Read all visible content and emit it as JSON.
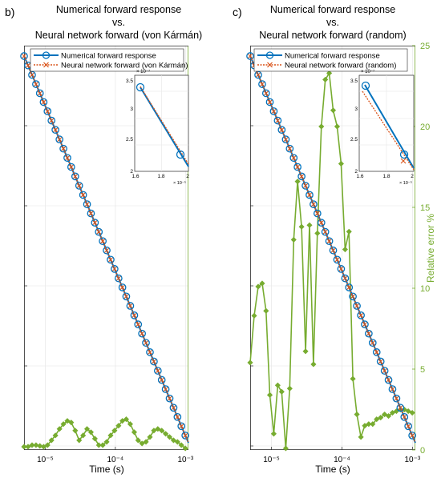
{
  "panels": [
    {
      "letter": "b)",
      "title_line1": "Numerical forward response",
      "title_line2": "vs.",
      "title_line3": "Neural network forward (von Kármán)",
      "legend": [
        "Numerical forward response",
        "Neural network forward (von Kármán)"
      ],
      "xlabel": "Time (s)",
      "inset": {
        "y_exponent": "× 10⁻⁷",
        "x_exponent": "× 10⁻⁵",
        "y_ticks": [
          "3.5",
          "3",
          "2.5",
          "2"
        ],
        "x_ticks": [
          "1.6",
          "1.8",
          "2"
        ]
      }
    },
    {
      "letter": "c)",
      "title_line1": "Numerical forward response",
      "title_line2": "vs.",
      "title_line3": "Neural network forward (random)",
      "legend": [
        "Numerical forward response",
        "Neural network forward (random)"
      ],
      "xlabel": "Time (s)",
      "ylabel_right": "Relative error %",
      "inset": {
        "y_exponent": "× 10⁻⁷",
        "x_exponent": "× 10⁻⁵",
        "y_ticks": [
          "3.5",
          "3",
          "2.5",
          "2"
        ],
        "x_ticks": [
          "1.6",
          "1.8",
          "2"
        ]
      }
    }
  ],
  "chart_data": [
    {
      "type": "line",
      "title": "Numerical forward response vs. Neural network forward (von Kármán)",
      "xlabel": "Time (s)",
      "x_scale": "log",
      "xlim": [
        5e-06,
        0.0011
      ],
      "x_tick_labels": [
        "10⁻⁵",
        "10⁻⁴",
        "10⁻³"
      ],
      "y_scale": "log",
      "legend_position": "top",
      "colors": {
        "numerical": "#0072BD",
        "network": "#D95319",
        "error": "#77AC30"
      },
      "series": [
        {
          "name": "Numerical forward response",
          "marker": "circle",
          "x": [
            5e-06,
            0.0011
          ]
        },
        {
          "name": "Neural network forward (von Kármán)",
          "marker": "x",
          "x": [
            5e-06,
            0.0011
          ]
        }
      ],
      "error_series": {
        "axis": "right",
        "ylim": [
          0,
          25
        ],
        "x": [
          5e-06,
          5.7e-06,
          6.5e-06,
          7.4e-06,
          8.4e-06,
          9.5e-06,
          1.08e-05,
          1.23e-05,
          1.4e-05,
          1.6e-05,
          1.82e-05,
          2.07e-05,
          2.35e-05,
          2.68e-05,
          3.05e-05,
          3.47e-05,
          3.95e-05,
          4.49e-05,
          5.11e-05,
          5.81e-05,
          6.61e-05,
          7.52e-05,
          8.56e-05,
          9.74e-05,
          0.000111,
          0.000126,
          0.000143,
          0.000163,
          0.000186,
          0.000211,
          0.00024,
          0.000273,
          0.000311,
          0.000354,
          0.000403,
          0.000458,
          0.000521,
          0.000593,
          0.000675,
          0.000768,
          0.000873,
          0.000994
        ],
        "values": [
          0.2,
          0.2,
          0.3,
          0.3,
          0.25,
          0.2,
          0.3,
          0.6,
          0.9,
          1.3,
          1.6,
          1.8,
          1.7,
          1.2,
          0.6,
          0.9,
          1.3,
          1.1,
          0.7,
          0.3,
          0.3,
          0.5,
          0.9,
          1.2,
          1.5,
          1.8,
          1.9,
          1.6,
          1.1,
          0.6,
          0.4,
          0.5,
          0.8,
          1.2,
          1.3,
          1.2,
          1.0,
          0.8,
          0.6,
          0.5,
          0.3,
          0.1
        ]
      },
      "inset": {
        "xlim": [
          1.6e-05,
          2e-05
        ],
        "ylim": [
          2e-07,
          3.6e-07
        ]
      }
    },
    {
      "type": "line",
      "title": "Numerical forward response vs. Neural network forward (random)",
      "xlabel": "Time (s)",
      "x_scale": "log",
      "xlim": [
        5e-06,
        0.0011
      ],
      "x_tick_labels": [
        "10⁻⁵",
        "10⁻⁴",
        "10⁻³"
      ],
      "y_scale": "log",
      "ylabel_right": "Relative error %",
      "y_right_ticks": [
        0,
        5,
        10,
        15,
        20,
        25
      ],
      "legend_position": "top",
      "colors": {
        "numerical": "#0072BD",
        "network": "#D95319",
        "error": "#77AC30"
      },
      "series": [
        {
          "name": "Numerical forward response",
          "marker": "circle",
          "x": [
            5e-06,
            0.0011
          ]
        },
        {
          "name": "Neural network forward (random)",
          "marker": "x",
          "x": [
            5e-06,
            0.0011
          ]
        }
      ],
      "error_series": {
        "axis": "right",
        "ylim": [
          0,
          25
        ],
        "x": [
          5e-06,
          5.7e-06,
          6.5e-06,
          7.4e-06,
          8.4e-06,
          9.5e-06,
          1.08e-05,
          1.23e-05,
          1.4e-05,
          1.6e-05,
          1.82e-05,
          2.07e-05,
          2.35e-05,
          2.68e-05,
          3.05e-05,
          3.47e-05,
          3.95e-05,
          4.49e-05,
          5.11e-05,
          5.81e-05,
          6.61e-05,
          7.52e-05,
          8.56e-05,
          9.74e-05,
          0.000111,
          0.000126,
          0.000143,
          0.000163,
          0.000186,
          0.000211,
          0.00024,
          0.000273,
          0.000311,
          0.000354,
          0.000403,
          0.000458,
          0.000521,
          0.000593,
          0.000675,
          0.000768,
          0.000873,
          0.000994
        ],
        "values": [
          5.4,
          8.3,
          10.1,
          10.3,
          8.6,
          3.4,
          1.0,
          4.0,
          3.6,
          0.1,
          3.8,
          13.0,
          16.6,
          13.8,
          6.1,
          13.9,
          5.3,
          13.4,
          20.0,
          22.9,
          23.3,
          21.0,
          20.0,
          17.7,
          12.4,
          13.5,
          4.4,
          2.2,
          0.8,
          1.5,
          1.6,
          1.6,
          1.9,
          2.0,
          2.2,
          2.1,
          2.3,
          2.4,
          2.5,
          2.5,
          2.4,
          2.3
        ]
      },
      "inset": {
        "xlim": [
          1.6e-05,
          2e-05
        ],
        "ylim": [
          2e-07,
          3.6e-07
        ]
      }
    }
  ]
}
